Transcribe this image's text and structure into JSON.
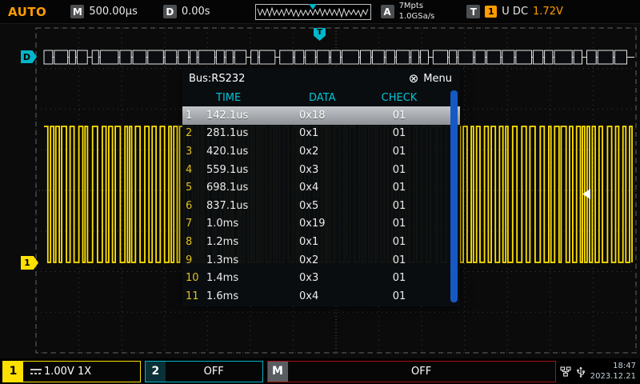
{
  "top_bar": {
    "mode": "AUTO",
    "timebase": {
      "label": "M",
      "value": "500.00μs"
    },
    "delay": {
      "label": "D",
      "value": "0.00s"
    },
    "acquire": {
      "label": "A",
      "memory": "7Mpts",
      "rate": "1.0GSa/s"
    },
    "trigger": {
      "label": "T",
      "source": "1",
      "coupling": "U DC",
      "level": "1.72V"
    }
  },
  "screen": {
    "trigger_marker": "T",
    "bus_marker": "D",
    "ch1_marker": "1"
  },
  "bus_panel": {
    "title": "Bus:RS232",
    "menu": {
      "icon": "⊗",
      "label": "Menu"
    },
    "columns": {
      "time": "TIME",
      "data": "DATA",
      "check": "CHECK"
    },
    "selected_index": 0,
    "rows": [
      {
        "n": "1",
        "time": "142.1us",
        "data": "0x18",
        "check": "01"
      },
      {
        "n": "2",
        "time": "281.1us",
        "data": "0x1",
        "check": "01"
      },
      {
        "n": "3",
        "time": "420.1us",
        "data": "0x2",
        "check": "01"
      },
      {
        "n": "4",
        "time": "559.1us",
        "data": "0x3",
        "check": "01"
      },
      {
        "n": "5",
        "time": "698.1us",
        "data": "0x4",
        "check": "01"
      },
      {
        "n": "6",
        "time": "837.1us",
        "data": "0x5",
        "check": "01"
      },
      {
        "n": "7",
        "time": "1.0ms",
        "data": "0x19",
        "check": "01"
      },
      {
        "n": "8",
        "time": "1.2ms",
        "data": "0x1",
        "check": "01"
      },
      {
        "n": "9",
        "time": "1.3ms",
        "data": "0x2",
        "check": "01"
      },
      {
        "n": "10",
        "time": "1.4ms",
        "data": "0x3",
        "check": "01"
      },
      {
        "n": "11",
        "time": "1.6ms",
        "data": "0x4",
        "check": "01"
      }
    ]
  },
  "bottom_bar": {
    "ch1": {
      "badge": "1",
      "value": "1.00V 1X"
    },
    "ch2": {
      "badge": "2",
      "value": "OFF"
    },
    "math": {
      "badge": "M",
      "value": "OFF"
    },
    "clock": {
      "time": "18:47",
      "date": "2023.12.21"
    }
  },
  "colors": {
    "ch1_yellow": "#ffe100",
    "ch2_cyan": "#00b6c8",
    "accent_orange": "#ff9d00",
    "table_header_cyan": "#00c5d4",
    "scrollbar_blue": "#1659c4",
    "math_red": "#a51212"
  }
}
